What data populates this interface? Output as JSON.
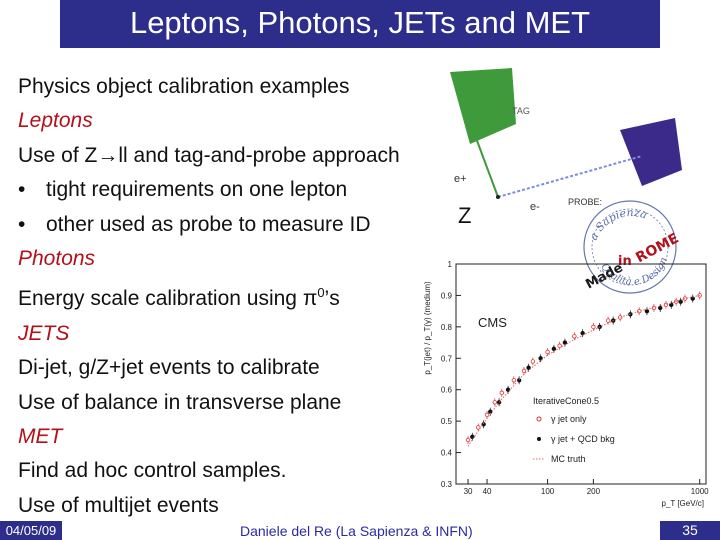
{
  "slide": {
    "title": "Leptons, Photons, JETs and MET",
    "lines": [
      {
        "text": "Physics object calibration examples",
        "style": "plain"
      },
      {
        "text": "Leptons",
        "style": "red"
      },
      {
        "text": "Use of Z→ll and tag-and-probe approach",
        "style": "plain"
      },
      {
        "text": "tight requirements on one lepton",
        "style": "bullet"
      },
      {
        "text": "other used as probe to measure ID",
        "style": "bullet"
      },
      {
        "text": "Photons",
        "style": "red"
      },
      {
        "text": "Energy scale calibration using π",
        "sup": "0",
        "tail": "’s",
        "style": "plain"
      },
      {
        "text": "JETS",
        "style": "red"
      },
      {
        "text": "Di-jet, g/Z+jet events to calibrate",
        "style": "plain"
      },
      {
        "text": "Use of balance in transverse plane",
        "style": "plain"
      },
      {
        "text": "MET",
        "style": "red"
      },
      {
        "text": "Find ad hoc control samples.",
        "style": "plain"
      },
      {
        "text": "Use of multijet events",
        "style": "plain"
      }
    ]
  },
  "diagram": {
    "tag_label": "TAG",
    "probe_label": "PROBE:",
    "e_plus": "e+",
    "e_minus": "e-",
    "z_label": "Z",
    "colors": {
      "tag": "#3e9a3a",
      "probe": "#3c2a8a",
      "track": "#7a8fd8"
    }
  },
  "stamp": {
    "outer_text": "a Sapienza",
    "word1": "Made",
    "word2": "in",
    "word3": "ROME",
    "bottom_text": "Qualità e Design"
  },
  "chart_data": {
    "type": "scatter",
    "title": "",
    "watermark": "CMS",
    "xlabel": "p_T [GeV/c]",
    "ylabel": "p_T(jet) / p_T(γ) (medium)",
    "ylim": [
      0.3,
      1.0
    ],
    "y_ticks": [
      "0.3",
      "0.4",
      "0.5",
      "0.6",
      "0.7",
      "0.8",
      "0.9",
      "1"
    ],
    "x_ticks": [
      "30",
      "40",
      "100",
      "200",
      "1000"
    ],
    "x_scale": "log",
    "xlim": [
      25,
      1100
    ],
    "legend": {
      "header": "IterativeCone0.5",
      "entries": [
        "γ jet only",
        "γ jet + QCD bkg",
        "MC truth"
      ]
    },
    "series": [
      {
        "marker": "open-circle",
        "x": [
          30,
          35,
          40,
          45,
          50,
          60,
          70,
          80,
          100,
          120,
          150,
          200,
          250,
          300,
          400,
          500,
          600,
          700,
          800,
          1000
        ],
        "y": [
          0.44,
          0.48,
          0.52,
          0.56,
          0.59,
          0.63,
          0.66,
          0.69,
          0.72,
          0.74,
          0.77,
          0.8,
          0.82,
          0.83,
          0.85,
          0.86,
          0.87,
          0.88,
          0.89,
          0.9
        ]
      },
      {
        "marker": "filled-circle",
        "x": [
          32,
          38,
          42,
          48,
          55,
          65,
          75,
          90,
          110,
          130,
          170,
          220,
          270,
          350,
          450,
          550,
          650,
          750,
          900
        ],
        "y": [
          0.45,
          0.49,
          0.53,
          0.56,
          0.6,
          0.63,
          0.67,
          0.7,
          0.73,
          0.75,
          0.78,
          0.8,
          0.82,
          0.84,
          0.85,
          0.86,
          0.87,
          0.88,
          0.89
        ]
      },
      {
        "marker": "dotted-line",
        "x": [
          30,
          40,
          50,
          70,
          100,
          150,
          200,
          300,
          400,
          600,
          800,
          1000
        ],
        "y": [
          0.42,
          0.51,
          0.57,
          0.65,
          0.71,
          0.76,
          0.79,
          0.83,
          0.85,
          0.87,
          0.89,
          0.9
        ]
      }
    ]
  },
  "footer": {
    "date": "04/05/09",
    "author": "Daniele del Re (La Sapienza & INFN)",
    "page": "35"
  }
}
